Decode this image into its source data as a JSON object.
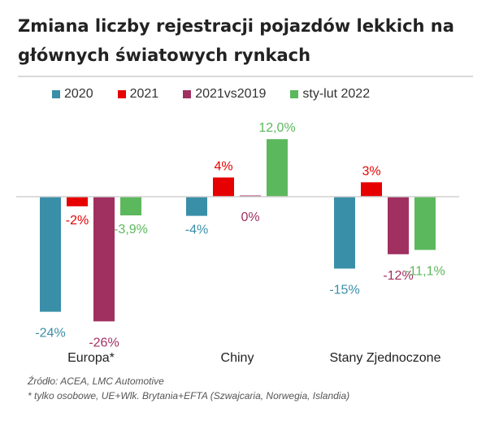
{
  "title_line1": "Zmiana liczby rejestracji pojazdów lekkich na",
  "title_line2": "głównych światowych rynkach",
  "source_line1": "Źródło: ACEA, LMC Automotive",
  "source_line2": "* tylko osobowe, UE+Wlk. Brytania+EFTA (Szwajcaria, Norwegia, Islandia)",
  "chart_data": {
    "type": "bar",
    "categories": [
      "Europa*",
      "Chiny",
      "Stany Zjednoczone"
    ],
    "series": [
      {
        "name": "2020",
        "color": "#3a8fa8",
        "values": [
          -24,
          -4,
          -15
        ],
        "labels": [
          "-24%",
          "-4%",
          "-15%"
        ]
      },
      {
        "name": "2021",
        "color": "#e60000",
        "values": [
          -2,
          4,
          3
        ],
        "labels": [
          "-2%",
          "4%",
          "3%"
        ]
      },
      {
        "name": "2021vs2019",
        "color": "#a0305f",
        "values": [
          -26,
          0,
          -12
        ],
        "labels": [
          "-26%",
          "0%",
          "-12%"
        ]
      },
      {
        "name": "sty-lut 2022",
        "color": "#5cb85c",
        "values": [
          -3.9,
          12.0,
          -11.1
        ],
        "labels": [
          "-3,9%",
          "12,0%",
          "-11,1%"
        ]
      }
    ],
    "ylim": [
      -26,
      12
    ],
    "grid": false,
    "legend_position": "top",
    "xlabel": "",
    "ylabel": ""
  }
}
